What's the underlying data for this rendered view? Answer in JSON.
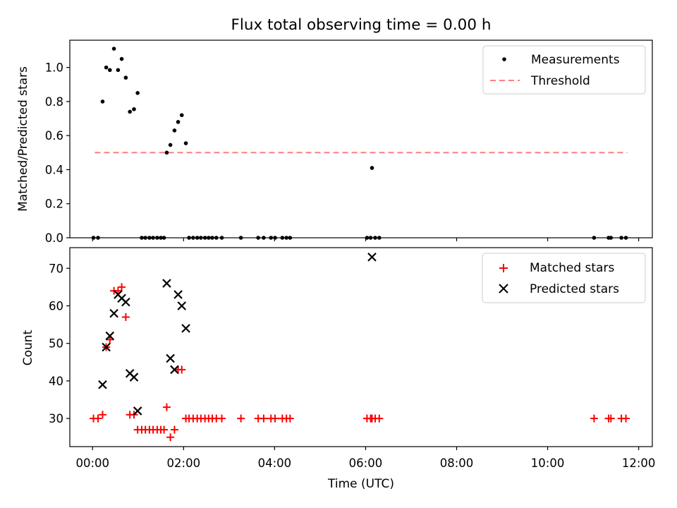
{
  "chart_data": {
    "title": "Flux total observing time = 0.00 h",
    "xlabel": "Time (UTC)",
    "xlim": [
      -0.5,
      12.3
    ],
    "xticks": [
      0,
      2,
      4,
      6,
      8,
      10,
      12
    ],
    "xtick_labels": [
      "00:00",
      "02:00",
      "04:00",
      "06:00",
      "08:00",
      "10:00",
      "12:00"
    ],
    "top": {
      "type": "scatter",
      "ylabel": "Matched/Predicted stars",
      "ylim": [
        0,
        1.16
      ],
      "yticks": [
        0,
        0.2,
        0.4,
        0.6,
        0.8,
        1.0
      ],
      "ytick_labels": [
        "0.0",
        "0.2",
        "0.4",
        "0.6",
        "0.8",
        "1.0"
      ],
      "legend": [
        "Measurements",
        "Threshold"
      ],
      "threshold": {
        "name": "Threshold",
        "y": 0.5,
        "x_start": 0.05,
        "x_end": 11.75,
        "color": "#ff7f7f"
      },
      "measurements": {
        "name": "Measurements",
        "color": "#000000",
        "x": [
          0.02,
          0.12,
          0.22,
          0.3,
          0.38,
          0.47,
          0.56,
          0.64,
          0.73,
          0.82,
          0.91,
          0.99,
          1.08,
          1.16,
          1.25,
          1.33,
          1.42,
          1.5,
          1.57,
          1.63,
          1.71,
          1.8,
          1.88,
          1.96,
          2.05,
          2.12,
          2.21,
          2.3,
          2.38,
          2.47,
          2.55,
          2.63,
          2.72,
          2.84,
          3.26,
          3.64,
          3.76,
          3.92,
          4.01,
          4.17,
          4.26,
          4.34,
          6.03,
          6.11,
          6.14,
          6.21,
          6.3,
          11.02,
          11.34,
          11.39,
          11.62,
          11.72
        ],
        "y": [
          0,
          0,
          0.8,
          1.0,
          0.985,
          1.11,
          0.985,
          1.05,
          0.94,
          0.74,
          0.755,
          0.85,
          0,
          0,
          0,
          0,
          0,
          0,
          0,
          0.5,
          0.545,
          0.63,
          0.68,
          0.72,
          0.555,
          0,
          0,
          0,
          0,
          0,
          0,
          0,
          0,
          0,
          0,
          0,
          0,
          0,
          0,
          0,
          0,
          0,
          0,
          0,
          0.41,
          0,
          0,
          0,
          0,
          0,
          0,
          0
        ]
      }
    },
    "bottom": {
      "type": "scatter",
      "ylabel": "Count",
      "ylim": [
        22.5,
        75.5
      ],
      "yticks": [
        30,
        40,
        50,
        60,
        70
      ],
      "ytick_labels": [
        "30",
        "40",
        "50",
        "60",
        "70"
      ],
      "legend": [
        "Matched stars",
        "Predicted stars"
      ],
      "matched": {
        "name": "Matched stars",
        "color": "#ff0000",
        "x": [
          0.02,
          0.12,
          0.22,
          0.3,
          0.38,
          0.47,
          0.56,
          0.64,
          0.73,
          0.82,
          0.91,
          0.99,
          1.08,
          1.16,
          1.25,
          1.33,
          1.42,
          1.5,
          1.57,
          1.63,
          1.71,
          1.8,
          1.88,
          1.96,
          2.05,
          2.12,
          2.21,
          2.3,
          2.38,
          2.47,
          2.55,
          2.63,
          2.72,
          2.84,
          3.26,
          3.64,
          3.76,
          3.92,
          4.01,
          4.17,
          4.26,
          4.34,
          6.03,
          6.11,
          6.14,
          6.21,
          6.3,
          11.02,
          11.34,
          11.39,
          11.62,
          11.72
        ],
        "y": [
          30,
          30,
          31,
          49,
          51,
          64,
          64,
          65,
          57,
          31,
          31,
          27,
          27,
          27,
          27,
          27,
          27,
          27,
          27,
          33,
          25,
          27,
          43,
          43,
          30,
          30,
          30,
          30,
          30,
          30,
          30,
          30,
          30,
          30,
          30,
          30,
          30,
          30,
          30,
          30,
          30,
          30,
          30,
          30,
          30,
          30,
          30,
          30,
          30,
          30,
          30,
          30
        ]
      },
      "predicted": {
        "name": "Predicted stars",
        "color": "#000000",
        "x": [
          0.22,
          0.3,
          0.38,
          0.47,
          0.56,
          0.64,
          0.73,
          0.82,
          0.91,
          0.99,
          1.63,
          1.71,
          1.8,
          1.88,
          1.96,
          2.05,
          6.14
        ],
        "y": [
          39,
          49,
          52,
          58,
          63,
          62,
          61,
          42,
          41,
          32,
          66,
          46,
          43,
          63,
          60,
          54,
          73
        ]
      }
    }
  }
}
